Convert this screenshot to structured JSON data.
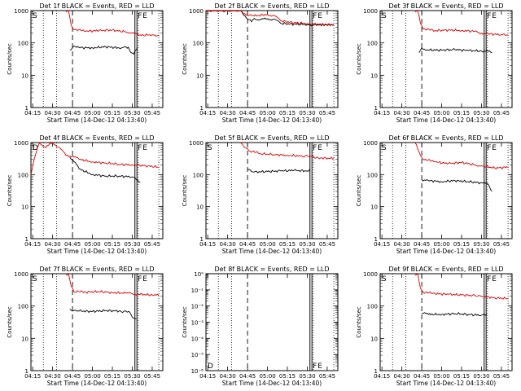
{
  "figure": {
    "x_title": "Start Time (14-Dec-12 04:13:40)",
    "y_label": "Counts/sec",
    "x_ticks": [
      "04:15",
      "04:30",
      "04:45",
      "05:00",
      "05:15",
      "05:30",
      "05:45"
    ],
    "markers": {
      "start": "S",
      "end": "E",
      "det_off": "D",
      "f_flag": "F"
    },
    "colors": {
      "events": "#000000",
      "lld": "#e00000"
    }
  },
  "chart_data": [
    {
      "type": "line",
      "title": "Det 1f BLACK = Events, RED = LLD",
      "yscale": "log",
      "ylim": [
        1,
        1000
      ],
      "y_ticks": [
        "1",
        "10",
        "100",
        "1000"
      ],
      "xlim": [
        "04:13:40",
        "05:53:00"
      ],
      "markers_shown": [
        "S",
        "E",
        "F"
      ],
      "series": [
        {
          "name": "Events",
          "points": [
            [
              "04:43",
              60
            ],
            [
              "04:46",
              80
            ],
            [
              "04:50",
              72
            ],
            [
              "05:00",
              70
            ],
            [
              "05:10",
              76
            ],
            [
              "05:20",
              70
            ],
            [
              "05:27",
              74
            ],
            [
              "05:29",
              50
            ],
            [
              "05:31",
              45
            ],
            [
              "05:34",
              70
            ]
          ]
        },
        {
          "name": "LLD",
          "points": [
            [
              "04:40",
              900
            ],
            [
              "04:42",
              1000
            ],
            [
              "04:44",
              350
            ],
            [
              "04:46",
              260
            ],
            [
              "04:55",
              230
            ],
            [
              "05:05",
              240
            ],
            [
              "05:15",
              250
            ],
            [
              "05:25",
              220
            ],
            [
              "05:30",
              210
            ],
            [
              "05:35",
              170
            ],
            [
              "05:45",
              180
            ],
            [
              "05:50",
              170
            ]
          ]
        }
      ]
    },
    {
      "type": "line",
      "title": "Det 2f BLACK = Events, RED = LLD",
      "yscale": "log",
      "ylim": [
        1,
        1000
      ],
      "y_ticks": [
        "1",
        "10",
        "100",
        "1000"
      ],
      "xlim": [
        "04:13:40",
        "05:53:00"
      ],
      "markers_shown": [
        "E",
        "F"
      ],
      "series": [
        {
          "name": "Events",
          "points": [
            [
              "04:13:40",
              1000
            ],
            [
              "04:20",
              1000
            ],
            [
              "04:30",
              1000
            ],
            [
              "04:40",
              1000
            ],
            [
              "04:45",
              550
            ],
            [
              "04:48",
              450
            ],
            [
              "04:50",
              570
            ],
            [
              "04:55",
              520
            ],
            [
              "05:00",
              560
            ],
            [
              "05:05",
              540
            ],
            [
              "05:10",
              400
            ],
            [
              "05:20",
              380
            ],
            [
              "05:30",
              370
            ],
            [
              "05:35",
              360
            ],
            [
              "05:50",
              360
            ]
          ]
        },
        {
          "name": "LLD",
          "points": [
            [
              "04:13:40",
              1000
            ],
            [
              "04:20",
              1000
            ],
            [
              "04:30",
              1000
            ],
            [
              "04:40",
              1000
            ],
            [
              "04:45",
              700
            ],
            [
              "04:50",
              680
            ],
            [
              "05:00",
              760
            ],
            [
              "05:05",
              700
            ],
            [
              "05:10",
              480
            ],
            [
              "05:20",
              420
            ],
            [
              "05:30",
              400
            ],
            [
              "05:35",
              380
            ],
            [
              "05:50",
              370
            ]
          ]
        }
      ]
    },
    {
      "type": "line",
      "title": "Det 3f BLACK = Events, RED = LLD",
      "yscale": "log",
      "ylim": [
        1,
        1000
      ],
      "y_ticks": [
        "1",
        "10",
        "100",
        "1000"
      ],
      "xlim": [
        "04:13:40",
        "05:53:00"
      ],
      "markers_shown": [
        "S",
        "E",
        "F"
      ],
      "series": [
        {
          "name": "Events",
          "points": [
            [
              "04:43",
              50
            ],
            [
              "04:45",
              70
            ],
            [
              "04:50",
              60
            ],
            [
              "05:00",
              60
            ],
            [
              "05:10",
              62
            ],
            [
              "05:20",
              58
            ],
            [
              "05:30",
              56
            ],
            [
              "05:35",
              55
            ],
            [
              "05:38",
              50
            ]
          ]
        },
        {
          "name": "LLD",
          "points": [
            [
              "04:40",
              900
            ],
            [
              "04:42",
              1000
            ],
            [
              "04:44",
              400
            ],
            [
              "04:46",
              270
            ],
            [
              "04:55",
              240
            ],
            [
              "05:05",
              250
            ],
            [
              "05:15",
              240
            ],
            [
              "05:25",
              230
            ],
            [
              "05:30",
              200
            ],
            [
              "05:35",
              190
            ],
            [
              "05:45",
              180
            ],
            [
              "05:50",
              175
            ]
          ]
        }
      ]
    },
    {
      "type": "line",
      "title": "Det 4f BLACK = Events, RED = LLD",
      "yscale": "log",
      "ylim": [
        1,
        1000
      ],
      "y_ticks": [
        "1",
        "10",
        "100",
        "1000"
      ],
      "xlim": [
        "04:13:40",
        "05:53:00"
      ],
      "markers_shown": [
        "D",
        "E",
        "F"
      ],
      "series": [
        {
          "name": "Events",
          "points": [
            [
              "04:43",
              350
            ],
            [
              "04:45",
              300
            ],
            [
              "04:50",
              150
            ],
            [
              "05:00",
              100
            ],
            [
              "05:10",
              90
            ],
            [
              "05:20",
              90
            ],
            [
              "05:30",
              85
            ],
            [
              "05:33",
              70
            ],
            [
              "05:36",
              60
            ]
          ]
        },
        {
          "name": "LLD",
          "points": [
            [
              "04:13:40",
              100
            ],
            [
              "04:17",
              400
            ],
            [
              "04:20",
              1000
            ],
            [
              "04:25",
              700
            ],
            [
              "04:30",
              1000
            ],
            [
              "04:35",
              700
            ],
            [
              "04:40",
              400
            ],
            [
              "04:45",
              380
            ],
            [
              "04:50",
              300
            ],
            [
              "05:00",
              250
            ],
            [
              "05:10",
              230
            ],
            [
              "05:20",
              210
            ],
            [
              "05:30",
              200
            ],
            [
              "05:40",
              190
            ],
            [
              "05:50",
              170
            ]
          ]
        }
      ]
    },
    {
      "type": "line",
      "title": "Det 5f BLACK = Events, RED = LLD",
      "yscale": "log",
      "ylim": [
        1,
        1000
      ],
      "y_ticks": [
        "1",
        "10",
        "100",
        "1000"
      ],
      "xlim": [
        "04:13:40",
        "05:53:00"
      ],
      "markers_shown": [
        "S",
        "E",
        "F"
      ],
      "series": [
        {
          "name": "Events",
          "points": [
            [
              "04:45",
              150
            ],
            [
              "04:50",
              120
            ],
            [
              "05:00",
              125
            ],
            [
              "05:10",
              130
            ],
            [
              "05:20",
              135
            ],
            [
              "05:30",
              130
            ],
            [
              "05:32",
              150
            ]
          ]
        },
        {
          "name": "LLD",
          "points": [
            [
              "04:40",
              1000
            ],
            [
              "04:43",
              700
            ],
            [
              "04:46",
              550
            ],
            [
              "04:55",
              450
            ],
            [
              "05:05",
              420
            ],
            [
              "05:15",
              400
            ],
            [
              "05:25",
              380
            ],
            [
              "05:32",
              370
            ],
            [
              "05:40",
              330
            ],
            [
              "05:50",
              320
            ]
          ]
        }
      ]
    },
    {
      "type": "line",
      "title": "Det 6f BLACK = Events, RED = LLD",
      "yscale": "log",
      "ylim": [
        1,
        1000
      ],
      "y_ticks": [
        "1",
        "10",
        "100",
        "1000"
      ],
      "xlim": [
        "04:13:40",
        "05:53:00"
      ],
      "markers_shown": [
        "S",
        "E",
        "F"
      ],
      "series": [
        {
          "name": "Events",
          "points": [
            [
              "04:45",
              70
            ],
            [
              "04:50",
              65
            ],
            [
              "05:00",
              60
            ],
            [
              "05:10",
              65
            ],
            [
              "05:20",
              60
            ],
            [
              "05:30",
              55
            ],
            [
              "05:35",
              50
            ],
            [
              "05:38",
              30
            ]
          ]
        },
        {
          "name": "LLD",
          "points": [
            [
              "04:40",
              1000
            ],
            [
              "04:44",
              400
            ],
            [
              "04:46",
              300
            ],
            [
              "04:55",
              250
            ],
            [
              "05:05",
              220
            ],
            [
              "05:15",
              240
            ],
            [
              "05:25",
              200
            ],
            [
              "05:30",
              190
            ],
            [
              "05:40",
              160
            ],
            [
              "05:50",
              170
            ]
          ]
        }
      ]
    },
    {
      "type": "line",
      "title": "Det 7f BLACK = Events, RED = LLD",
      "yscale": "log",
      "ylim": [
        1,
        1000
      ],
      "y_ticks": [
        "1",
        "10",
        "100",
        "1000"
      ],
      "xlim": [
        "04:13:40",
        "05:53:00"
      ],
      "markers_shown": [
        "S",
        "E",
        "F"
      ],
      "series": [
        {
          "name": "Events",
          "points": [
            [
              "04:43",
              80
            ],
            [
              "04:45",
              70
            ],
            [
              "04:50",
              70
            ],
            [
              "05:00",
              68
            ],
            [
              "05:10",
              72
            ],
            [
              "05:20",
              70
            ],
            [
              "05:28",
              65
            ],
            [
              "05:30",
              45
            ],
            [
              "05:33",
              40
            ]
          ]
        },
        {
          "name": "LLD",
          "points": [
            [
              "04:40",
              900
            ],
            [
              "04:42",
              1000
            ],
            [
              "04:44",
              400
            ],
            [
              "04:46",
              280
            ],
            [
              "04:55",
              270
            ],
            [
              "05:05",
              280
            ],
            [
              "05:15",
              260
            ],
            [
              "05:25",
              250
            ],
            [
              "05:30",
              240
            ],
            [
              "05:35",
              230
            ],
            [
              "05:45",
              220
            ],
            [
              "05:50",
              210
            ]
          ]
        }
      ]
    },
    {
      "type": "line",
      "title": "Det 8f BLACK = Events, RED = LLD",
      "yscale": "log",
      "ylim": [
        1e-06,
        1
      ],
      "y_ticks": [
        "10⁻⁶",
        "10⁻⁵",
        "10⁻⁴",
        "10⁻³",
        "10⁻²",
        "10⁻¹",
        "10⁰"
      ],
      "xlim": [
        "04:13:40",
        "05:53:00"
      ],
      "markers_shown": [
        "D",
        "E",
        "F"
      ],
      "series": []
    },
    {
      "type": "line",
      "title": "Det 9f BLACK = Events, RED = LLD",
      "yscale": "log",
      "ylim": [
        1,
        1000
      ],
      "y_ticks": [
        "1",
        "10",
        "100",
        "1000"
      ],
      "xlim": [
        "04:13:40",
        "05:53:00"
      ],
      "markers_shown": [
        "S",
        "E",
        "F"
      ],
      "series": [
        {
          "name": "Events",
          "points": [
            [
              "04:45",
              60
            ],
            [
              "04:50",
              55
            ],
            [
              "05:00",
              55
            ],
            [
              "05:10",
              58
            ],
            [
              "05:20",
              55
            ],
            [
              "05:30",
              52
            ],
            [
              "05:34",
              55
            ]
          ]
        },
        {
          "name": "LLD",
          "points": [
            [
              "04:40",
              900
            ],
            [
              "04:42",
              1000
            ],
            [
              "04:44",
              350
            ],
            [
              "04:46",
              270
            ],
            [
              "04:55",
              240
            ],
            [
              "05:05",
              230
            ],
            [
              "05:15",
              220
            ],
            [
              "05:25",
              210
            ],
            [
              "05:30",
              200
            ],
            [
              "05:40",
              180
            ],
            [
              "05:50",
              170
            ]
          ]
        }
      ]
    }
  ]
}
